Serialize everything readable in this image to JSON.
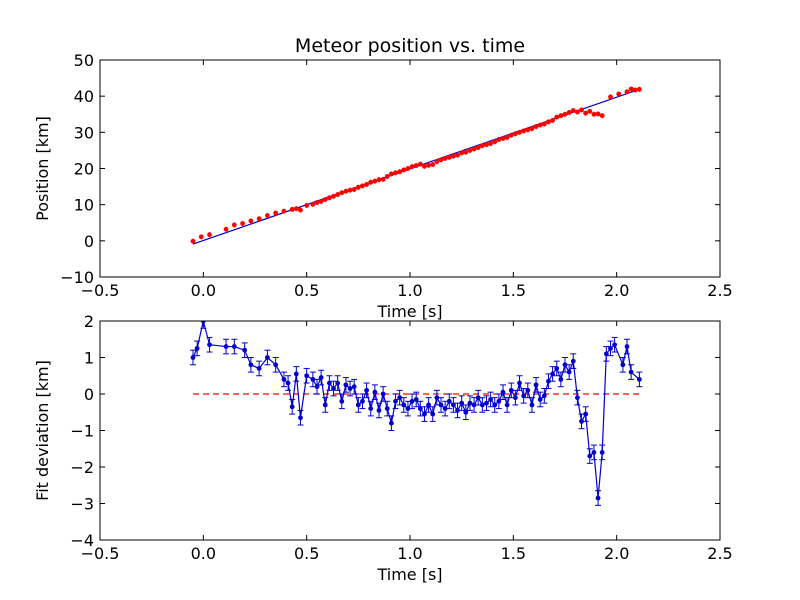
{
  "chart_data": [
    {
      "type": "scatter",
      "title": "Meteor position vs. time",
      "xlabel": "Time [s]",
      "ylabel": "Position [km]",
      "xlim": [
        -0.5,
        2.5
      ],
      "ylim": [
        -10,
        50
      ],
      "xticks": [
        "−0.5",
        "0.0",
        "0.5",
        "1.0",
        "1.5",
        "2.0",
        "2.5"
      ],
      "yticks": [
        "−10",
        "0",
        "10",
        "20",
        "30",
        "40",
        "50"
      ],
      "xtick_values": [
        -0.5,
        0.0,
        0.5,
        1.0,
        1.5,
        2.0,
        2.5
      ],
      "ytick_values": [
        -10,
        0,
        10,
        20,
        30,
        40,
        50
      ],
      "grid": false,
      "colors": {
        "points": "#ff0000",
        "fit": "#0000cc"
      },
      "fit_line": {
        "x": [
          -0.05,
          2.11
        ],
        "y": [
          -0.9,
          41.9
        ]
      },
      "series": [
        {
          "x": [
            -0.05,
            -0.01,
            0.03,
            0.11,
            0.15,
            0.19,
            0.23,
            0.27,
            0.31,
            0.35,
            0.39,
            0.43,
            0.45,
            0.47,
            0.5,
            0.53,
            0.55,
            0.57,
            0.59,
            0.61,
            0.63,
            0.65,
            0.67,
            0.69,
            0.71,
            0.73,
            0.75,
            0.77,
            0.79,
            0.81,
            0.83,
            0.85,
            0.87,
            0.89,
            0.91,
            0.93,
            0.95,
            0.97,
            0.99,
            1.01,
            1.03,
            1.05,
            1.07,
            1.09,
            1.11,
            1.13,
            1.15,
            1.17,
            1.19,
            1.21,
            1.23,
            1.25,
            1.27,
            1.29,
            1.31,
            1.33,
            1.35,
            1.37,
            1.39,
            1.41,
            1.43,
            1.45,
            1.47,
            1.49,
            1.51,
            1.53,
            1.55,
            1.57,
            1.59,
            1.61,
            1.63,
            1.65,
            1.67,
            1.69,
            1.71,
            1.73,
            1.75,
            1.77,
            1.79,
            1.81,
            1.83,
            1.85,
            1.87,
            1.89,
            1.91,
            1.93,
            1.97,
            2.01,
            2.05,
            2.07,
            2.09,
            2.11
          ],
          "y": [
            -0.1,
            1.1,
            1.7,
            3.2,
            4.4,
            4.8,
            5.5,
            6.1,
            7.0,
            7.7,
            8.2,
            8.7,
            8.9,
            8.5,
            9.8,
            10.1,
            10.6,
            10.9,
            11.4,
            11.9,
            12.3,
            12.8,
            13.3,
            13.7,
            14.0,
            14.2,
            14.8,
            15.2,
            15.6,
            16.2,
            16.5,
            16.9,
            17.0,
            17.8,
            18.5,
            18.8,
            19.1,
            19.6,
            20.0,
            20.5,
            20.8,
            21.2,
            20.6,
            20.9,
            21.1,
            21.9,
            22.4,
            22.8,
            23.1,
            23.4,
            23.7,
            24.3,
            24.5,
            25.0,
            25.4,
            25.8,
            26.3,
            26.6,
            26.9,
            27.4,
            28.0,
            28.3,
            28.6,
            29.2,
            29.6,
            30.0,
            30.4,
            30.7,
            31.0,
            31.6,
            32.0,
            32.3,
            32.9,
            33.3,
            34.2,
            34.6,
            35.0,
            35.5,
            36.0,
            35.6,
            36.2,
            35.3,
            35.8,
            35.0,
            35.1,
            34.6,
            39.8,
            40.6,
            41.2,
            42.0,
            41.7,
            41.9
          ]
        }
      ]
    },
    {
      "type": "line",
      "title": "",
      "xlabel": "Time [s]",
      "ylabel": "Fit deviation [km]",
      "xlim": [
        -0.5,
        2.5
      ],
      "ylim": [
        -4,
        2
      ],
      "xticks": [
        "−0.5",
        "0.0",
        "0.5",
        "1.0",
        "1.5",
        "2.0",
        "2.5"
      ],
      "yticks": [
        "−4",
        "−3",
        "−2",
        "−1",
        "0",
        "1",
        "2"
      ],
      "xtick_values": [
        -0.5,
        0.0,
        0.5,
        1.0,
        1.5,
        2.0,
        2.5
      ],
      "ytick_values": [
        -4,
        -3,
        -2,
        -1,
        0,
        1,
        2
      ],
      "grid": false,
      "colors": {
        "line": "#0000cc",
        "zero": "#ff0000"
      },
      "reference_line": {
        "y": 0,
        "x": [
          -0.05,
          2.11
        ],
        "style": "dashed"
      },
      "series": [
        {
          "x": [
            -0.05,
            -0.03,
            0.0,
            0.03,
            0.11,
            0.15,
            0.2,
            0.23,
            0.27,
            0.31,
            0.35,
            0.39,
            0.41,
            0.43,
            0.45,
            0.47,
            0.5,
            0.53,
            0.55,
            0.57,
            0.59,
            0.61,
            0.63,
            0.65,
            0.67,
            0.69,
            0.71,
            0.73,
            0.75,
            0.77,
            0.79,
            0.81,
            0.83,
            0.85,
            0.87,
            0.89,
            0.91,
            0.93,
            0.95,
            0.97,
            0.99,
            1.01,
            1.03,
            1.05,
            1.07,
            1.09,
            1.11,
            1.13,
            1.15,
            1.17,
            1.19,
            1.21,
            1.23,
            1.25,
            1.27,
            1.29,
            1.31,
            1.33,
            1.35,
            1.37,
            1.39,
            1.41,
            1.43,
            1.45,
            1.47,
            1.49,
            1.51,
            1.53,
            1.55,
            1.57,
            1.59,
            1.61,
            1.63,
            1.65,
            1.67,
            1.69,
            1.71,
            1.73,
            1.75,
            1.77,
            1.79,
            1.81,
            1.83,
            1.85,
            1.87,
            1.89,
            1.91,
            1.93,
            1.95,
            1.97,
            1.99,
            2.03,
            2.05,
            2.07,
            2.11
          ],
          "y": [
            1.0,
            1.25,
            2.0,
            1.35,
            1.3,
            1.3,
            1.2,
            0.8,
            0.7,
            1.0,
            0.8,
            0.4,
            0.3,
            -0.35,
            0.55,
            -0.65,
            0.5,
            0.4,
            0.2,
            0.45,
            -0.3,
            0.3,
            0.15,
            0.3,
            -0.2,
            0.25,
            0.15,
            0.2,
            -0.3,
            -0.2,
            0.1,
            -0.4,
            0.05,
            -0.45,
            0.0,
            -0.4,
            -0.8,
            -0.2,
            -0.1,
            -0.3,
            -0.4,
            -0.2,
            -0.15,
            -0.4,
            -0.55,
            -0.3,
            -0.55,
            -0.1,
            -0.3,
            -0.4,
            -0.2,
            -0.3,
            -0.45,
            -0.25,
            -0.5,
            -0.25,
            -0.3,
            -0.1,
            -0.3,
            -0.25,
            -0.15,
            -0.3,
            -0.2,
            0.05,
            -0.3,
            0.1,
            -0.1,
            0.3,
            -0.05,
            0.1,
            -0.3,
            0.25,
            -0.15,
            -0.05,
            0.35,
            0.55,
            0.7,
            0.4,
            0.8,
            0.6,
            0.9,
            -0.1,
            -0.75,
            -0.55,
            -1.7,
            -1.6,
            -2.85,
            -1.6,
            1.1,
            1.25,
            1.35,
            0.8,
            1.3,
            0.6,
            0.4
          ],
          "error": 0.2
        }
      ]
    }
  ]
}
